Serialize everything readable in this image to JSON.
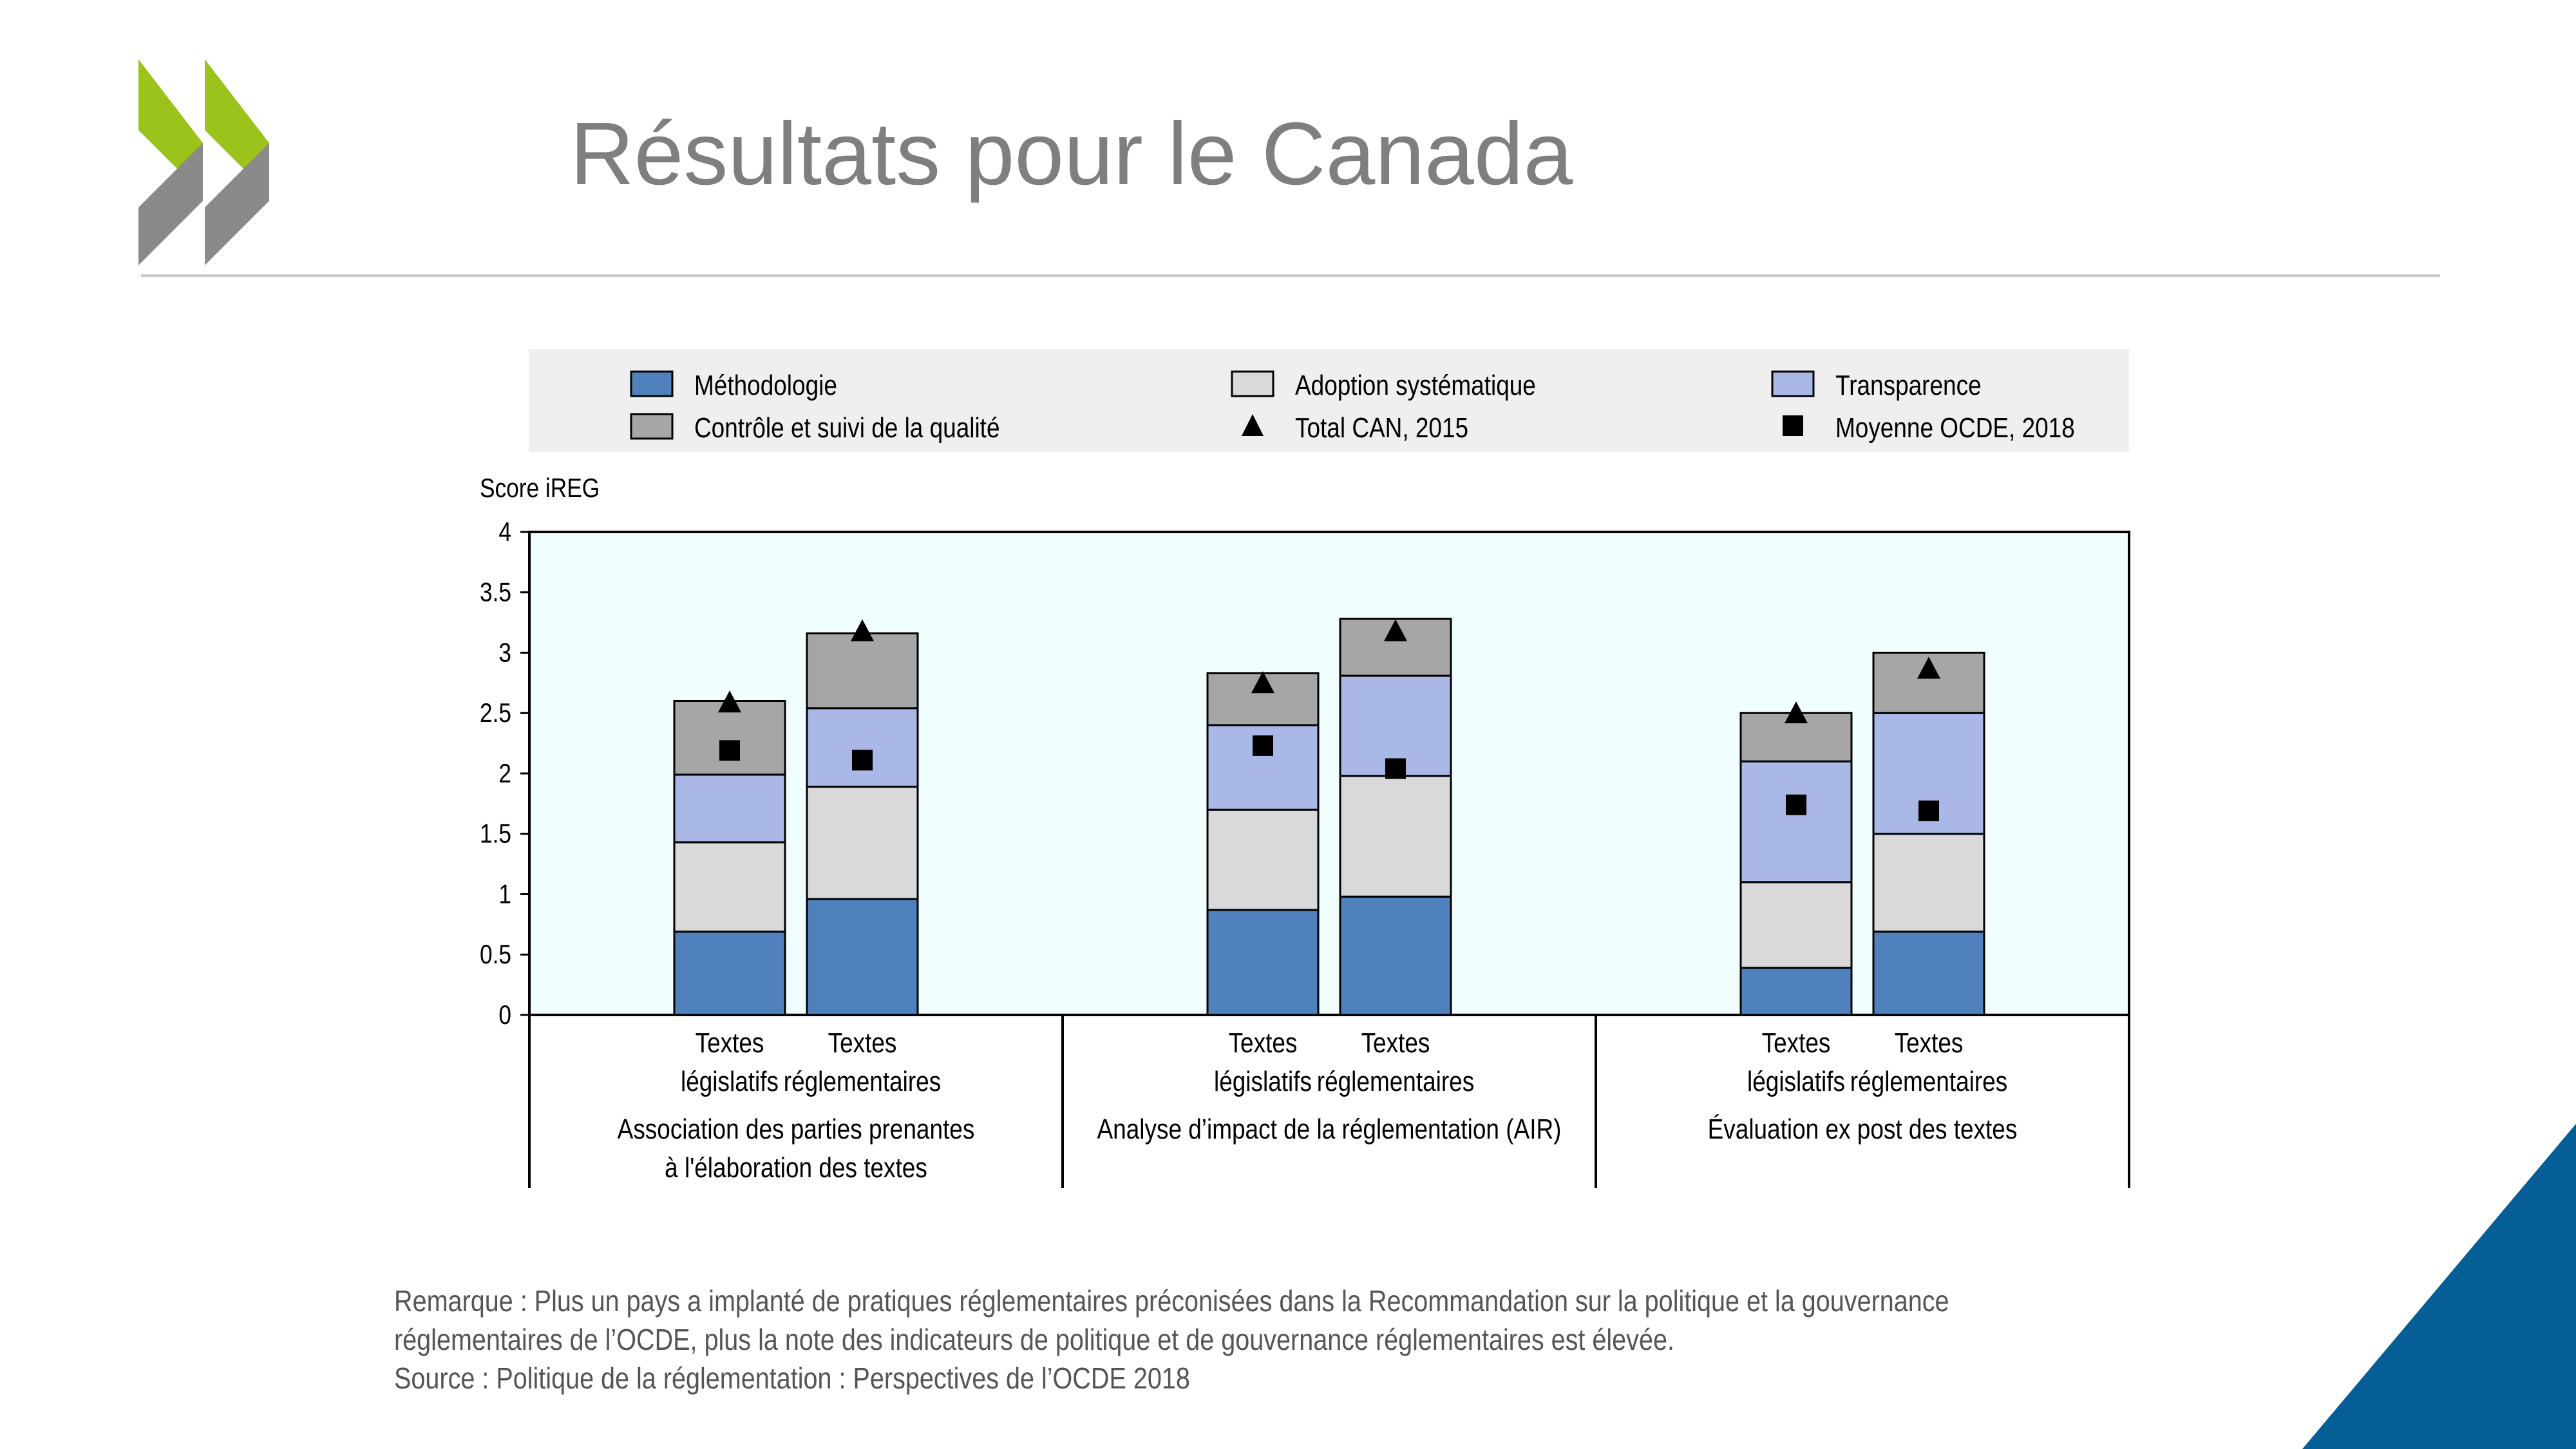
{
  "header": {
    "title": "Résultats pour le Canada"
  },
  "colors": {
    "accent_green": "#9bc31c",
    "accent_gray": "#8a8a8a",
    "corner_blue": "#055f96",
    "plot_bg": "#f0feff"
  },
  "chart_data": {
    "type": "bar",
    "stacked": true,
    "ylabel": "Score iREG",
    "ylim": [
      0,
      4
    ],
    "yticks": [
      "0",
      "0.5",
      "1",
      "1.5",
      "2",
      "2.5",
      "3",
      "3.5",
      "4"
    ],
    "grid": false,
    "legend_position": "top",
    "groups": [
      {
        "label_lines": [
          "Association des parties prenantes",
          "à l'élaboration des textes"
        ]
      },
      {
        "label_lines": [
          "Analyse d’impact de la réglementation (AIR)"
        ]
      },
      {
        "label_lines": [
          "Évaluation ex post des textes"
        ]
      }
    ],
    "categories": [
      {
        "group": 0,
        "label_lines": [
          "Textes",
          "législatifs"
        ]
      },
      {
        "group": 0,
        "label_lines": [
          "Textes",
          "réglementaires"
        ]
      },
      {
        "group": 1,
        "label_lines": [
          "Textes",
          "législatifs"
        ]
      },
      {
        "group": 1,
        "label_lines": [
          "Textes",
          "réglementaires"
        ]
      },
      {
        "group": 2,
        "label_lines": [
          "Textes",
          "législatifs"
        ]
      },
      {
        "group": 2,
        "label_lines": [
          "Textes",
          "réglementaires"
        ]
      }
    ],
    "series": [
      {
        "name": "Méthodologie",
        "color": "#4f81bd",
        "values": [
          0.69,
          0.96,
          0.87,
          0.98,
          0.39,
          0.69
        ]
      },
      {
        "name": "Adoption systématique",
        "color": "#d9d9d9",
        "values": [
          0.74,
          0.93,
          0.83,
          1.0,
          0.71,
          0.81
        ]
      },
      {
        "name": "Transparence",
        "color": "#a9b8e6",
        "values": [
          0.56,
          0.65,
          0.7,
          0.83,
          1.0,
          1.0
        ]
      },
      {
        "name": "Contrôle et suivi de la qualité",
        "color": "#a6a6a6",
        "values": [
          0.61,
          0.62,
          0.43,
          0.47,
          0.4,
          0.5
        ]
      }
    ],
    "markers": [
      {
        "name": "Total CAN, 2015",
        "shape": "triangle",
        "values": [
          2.58,
          3.17,
          2.74,
          3.17,
          2.49,
          2.86
        ]
      },
      {
        "name": "Moyenne OCDE, 2018",
        "shape": "square",
        "values": [
          2.19,
          2.11,
          2.23,
          2.04,
          1.74,
          1.69
        ]
      }
    ],
    "legend_order": [
      "Méthodologie",
      "Adoption systématique",
      "Transparence",
      "Contrôle et suivi de la qualité",
      "Total CAN, 2015",
      "Moyenne OCDE, 2018"
    ]
  },
  "notes": {
    "remark_line1": "Remarque : Plus un pays a implanté de pratiques réglementaires préconisées dans la Recommandation sur la politique et la gouvernance",
    "remark_line2": "réglementaires de l’OCDE, plus la note des indicateurs de politique et de gouvernance réglementaires est élevée.",
    "source": "Source : Politique de la réglementation : Perspectives de l’OCDE 2018"
  }
}
